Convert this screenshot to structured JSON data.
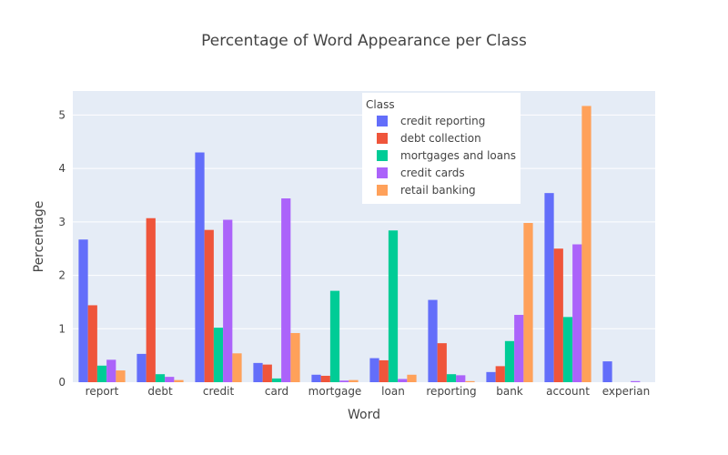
{
  "chart_data": {
    "type": "bar",
    "title": "Percentage of Word Appearance per Class",
    "xlabel": "Word",
    "ylabel": "Percentage",
    "ylim": [
      0,
      5.45
    ],
    "yticks": [
      0,
      1,
      2,
      3,
      4,
      5
    ],
    "grid": true,
    "legend": {
      "title": "Class",
      "placement": "top-right-inside"
    },
    "categories": [
      "report",
      "debt",
      "credit",
      "card",
      "mortgage",
      "loan",
      "reporting",
      "bank",
      "account",
      "experian"
    ],
    "series": [
      {
        "name": "credit reporting",
        "color": "#636efa",
        "values": [
          2.67,
          0.53,
          4.3,
          0.36,
          0.14,
          0.45,
          1.54,
          0.19,
          3.54,
          0.39
        ]
      },
      {
        "name": "debt collection",
        "color": "#EF553B",
        "values": [
          1.44,
          3.07,
          2.85,
          0.33,
          0.12,
          0.41,
          0.73,
          0.3,
          2.5,
          0.0
        ]
      },
      {
        "name": "mortgages and loans",
        "color": "#00cc96",
        "values": [
          0.31,
          0.15,
          1.02,
          0.07,
          1.71,
          2.84,
          0.15,
          0.77,
          1.22,
          0.0
        ]
      },
      {
        "name": "credit cards",
        "color": "#ab63fa",
        "values": [
          0.42,
          0.1,
          3.04,
          3.44,
          0.03,
          0.06,
          0.13,
          1.26,
          2.58,
          0.02
        ]
      },
      {
        "name": "retail banking",
        "color": "#FFA15A",
        "values": [
          0.22,
          0.04,
          0.54,
          0.92,
          0.04,
          0.14,
          0.02,
          2.98,
          5.17,
          0.0
        ]
      }
    ]
  }
}
